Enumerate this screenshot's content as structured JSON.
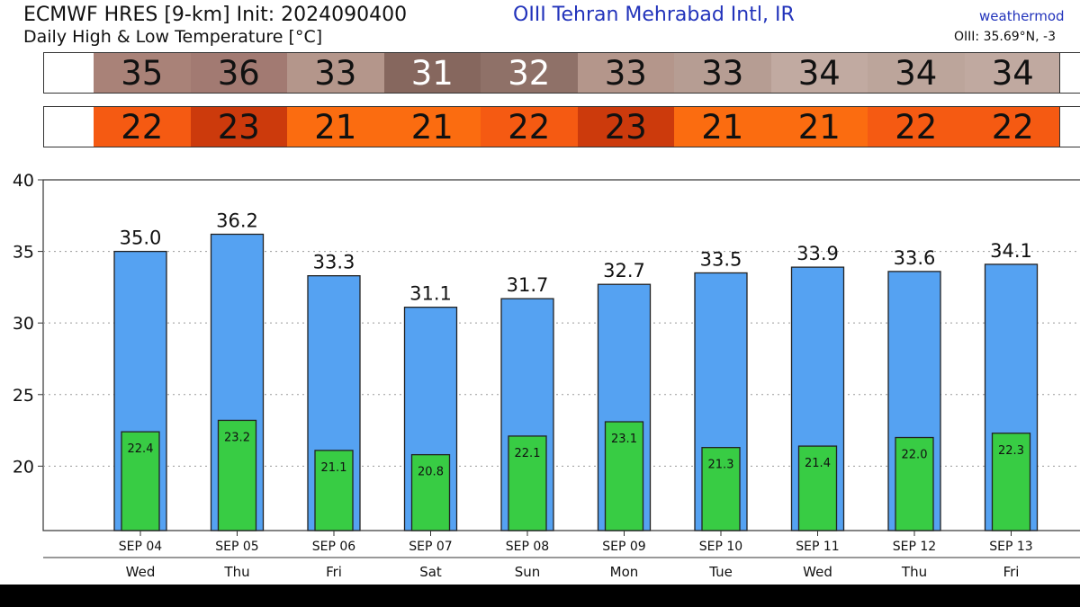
{
  "header": {
    "title": "ECMWF HRES [9-km] Init: 2024090400",
    "subtitle": "Daily High & Low Temperature [°C]",
    "station": "OIII Tehran Mehrabad Intl,  IR",
    "brand": "weathermod",
    "coords": "OIII: 35.69°N, -3"
  },
  "high_strip": {
    "values": [
      "35",
      "36",
      "33",
      "31",
      "32",
      "33",
      "33",
      "34",
      "34",
      "34"
    ],
    "colors": [
      "#a98278",
      "#a27a72",
      "#b4968b",
      "#86675e",
      "#8f7168",
      "#b4968b",
      "#b69d93",
      "#c1aaa1",
      "#bca59b",
      "#c0a9a0"
    ],
    "text_colors": [
      "#111111",
      "#111111",
      "#111111",
      "#ffffff",
      "#ffffff",
      "#111111",
      "#111111",
      "#111111",
      "#111111",
      "#111111"
    ]
  },
  "low_strip": {
    "values": [
      "22",
      "23",
      "21",
      "21",
      "22",
      "23",
      "21",
      "21",
      "22",
      "22"
    ],
    "colors": [
      "#f55a12",
      "#cc3a0c",
      "#fb6c10",
      "#fb6c10",
      "#f55a12",
      "#cc3a0c",
      "#fb6c10",
      "#fb6c10",
      "#f55a12",
      "#f55a12"
    ]
  },
  "chart_data": {
    "type": "bar",
    "categories": [
      "SEP 04",
      "SEP 05",
      "SEP 06",
      "SEP 07",
      "SEP 08",
      "SEP 09",
      "SEP 10",
      "SEP 11",
      "SEP 12",
      "SEP 13"
    ],
    "weekdays": [
      "Wed",
      "Thu",
      "Fri",
      "Sat",
      "Sun",
      "Mon",
      "Tue",
      "Wed",
      "Thu",
      "Fri"
    ],
    "series": [
      {
        "values": [
          35.0,
          36.2,
          33.3,
          31.1,
          31.7,
          32.7,
          33.5,
          33.9,
          33.6,
          34.1
        ],
        "labels": [
          "35.0",
          "36.2",
          "33.3",
          "31.1",
          "31.7",
          "32.7",
          "33.5",
          "33.9",
          "33.6",
          "34.1"
        ],
        "color": "#55a2f2"
      },
      {
        "values": [
          22.4,
          23.2,
          21.1,
          20.8,
          22.1,
          23.1,
          21.3,
          21.4,
          22.0,
          22.3
        ],
        "labels": [
          "22.4",
          "23.2",
          "21.1",
          "20.8",
          "22.1",
          "23.1",
          "21.3",
          "21.4",
          "22.0",
          "22.3"
        ],
        "color": "#38cc44"
      }
    ],
    "y_ticks": [
      "20",
      "25",
      "30",
      "35",
      "40"
    ],
    "ylim": [
      15.5,
      40
    ],
    "grid": true,
    "legend": "none"
  }
}
